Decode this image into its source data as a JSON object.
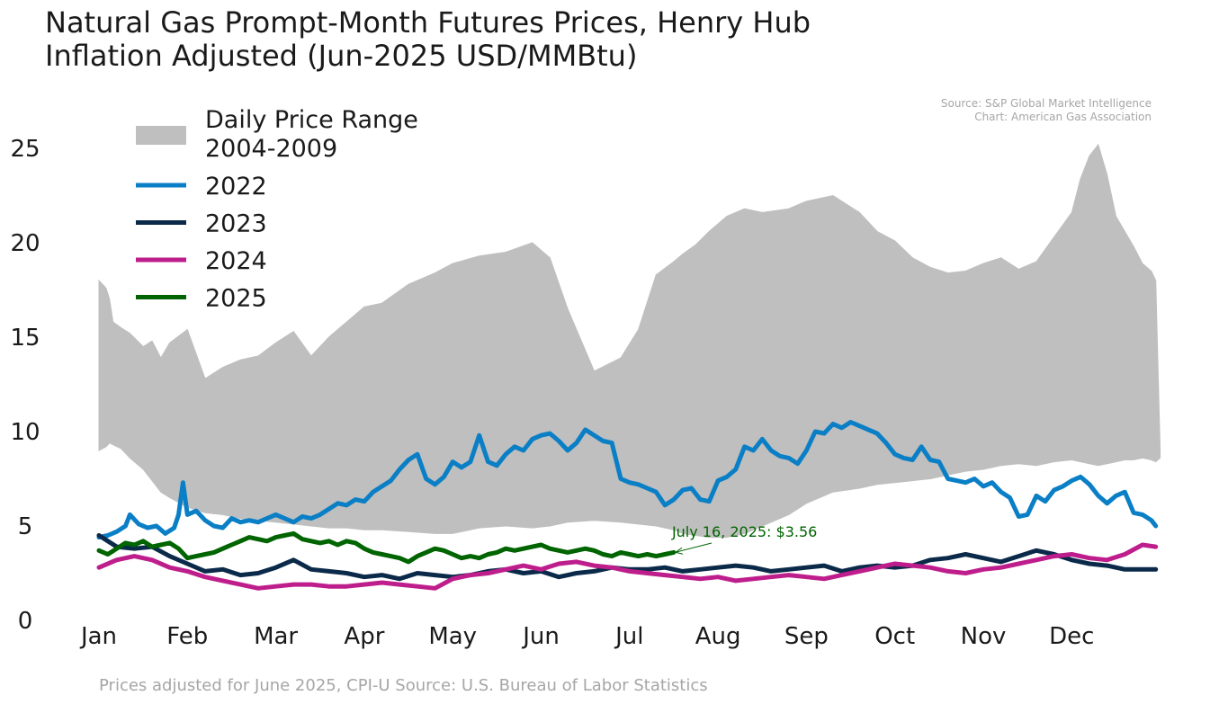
{
  "title": "Natural Gas Prompt-Month Futures Prices, Henry Hub",
  "subtitle": "Inflation Adjusted (Jun-2025 USD/MMBtu)",
  "source_lines": [
    "Source: S&P Global Market Intelligence",
    "Chart: American Gas Association"
  ],
  "footnote": "Prices adjusted for June 2025, CPI-U Source: U.S. Bureau of Labor Statistics",
  "annotation": {
    "text": "July 16, 2025: $3.56",
    "x": 6.5,
    "y": 3.56,
    "color": "#006400"
  },
  "chart_data": {
    "type": "line",
    "xlabel": "",
    "ylabel": "",
    "x_ticks": [
      "Jan",
      "Feb",
      "Mar",
      "Apr",
      "May",
      "Jun",
      "Jul",
      "Aug",
      "Sep",
      "Oct",
      "Nov",
      "Dec"
    ],
    "y_ticks": [
      0,
      5,
      10,
      15,
      20,
      25
    ],
    "xlim": [
      0,
      12
    ],
    "ylim": [
      0,
      27
    ],
    "grid": false,
    "legend": {
      "position": "top-left",
      "band_label_lines": [
        "Daily Price Range",
        "2004-2009"
      ]
    },
    "band": {
      "name": "Daily Price Range 2004-2009",
      "color": "#bfbfbf",
      "x": [
        0,
        0.08,
        0.12,
        0.16,
        0.25,
        0.35,
        0.5,
        0.6,
        0.7,
        0.8,
        1.0,
        1.2,
        1.4,
        1.6,
        1.8,
        2.0,
        2.2,
        2.4,
        2.6,
        2.8,
        3.0,
        3.2,
        3.5,
        3.8,
        4.0,
        4.3,
        4.6,
        4.9,
        5.1,
        5.3,
        5.6,
        5.9,
        6.1,
        6.3,
        6.5,
        6.6,
        6.75,
        6.9,
        7.1,
        7.3,
        7.5,
        7.8,
        8.0,
        8.3,
        8.6,
        8.8,
        9.0,
        9.2,
        9.4,
        9.6,
        9.8,
        10.0,
        10.2,
        10.4,
        10.6,
        10.8,
        11.0,
        11.1,
        11.2,
        11.3,
        11.4,
        11.5,
        11.6,
        11.7,
        11.8,
        11.9,
        11.95,
        12.0
      ],
      "upper": [
        18.0,
        17.6,
        17.0,
        15.8,
        15.5,
        15.2,
        14.5,
        14.8,
        13.9,
        14.7,
        15.4,
        12.8,
        13.4,
        13.8,
        14.0,
        14.7,
        15.3,
        14.0,
        15.0,
        15.8,
        16.6,
        16.8,
        17.8,
        18.4,
        18.9,
        19.3,
        19.5,
        20.0,
        19.2,
        16.5,
        13.2,
        13.9,
        15.4,
        18.3,
        19.0,
        19.4,
        19.9,
        20.6,
        21.4,
        21.8,
        21.6,
        21.8,
        22.2,
        22.5,
        21.6,
        20.6,
        20.1,
        19.2,
        18.7,
        18.4,
        18.5,
        18.9,
        19.2,
        18.6,
        19.0,
        20.3,
        21.6,
        23.4,
        24.6,
        25.2,
        23.6,
        21.4,
        20.6,
        19.8,
        18.9,
        18.5,
        18.0,
        9.0
      ],
      "lower": [
        9.0,
        9.2,
        9.4,
        9.3,
        9.1,
        8.6,
        8.0,
        7.4,
        6.8,
        6.5,
        6.0,
        5.7,
        5.6,
        5.4,
        5.3,
        5.2,
        5.1,
        5.0,
        4.9,
        4.9,
        4.8,
        4.8,
        4.7,
        4.6,
        4.6,
        4.9,
        5.0,
        4.9,
        5.0,
        5.2,
        5.3,
        5.2,
        5.1,
        5.0,
        4.8,
        4.6,
        4.5,
        4.4,
        4.4,
        4.6,
        5.0,
        5.6,
        6.2,
        6.8,
        7.0,
        7.2,
        7.3,
        7.4,
        7.5,
        7.7,
        7.9,
        8.0,
        8.2,
        8.3,
        8.2,
        8.4,
        8.5,
        8.4,
        8.3,
        8.2,
        8.3,
        8.4,
        8.5,
        8.5,
        8.6,
        8.5,
        8.4,
        8.6
      ]
    },
    "series": [
      {
        "name": "2022",
        "color": "#0a7fc6",
        "x": [
          0,
          0.1,
          0.2,
          0.3,
          0.35,
          0.45,
          0.55,
          0.65,
          0.75,
          0.85,
          0.9,
          0.95,
          1.0,
          1.1,
          1.2,
          1.3,
          1.4,
          1.5,
          1.6,
          1.7,
          1.8,
          1.9,
          2.0,
          2.1,
          2.2,
          2.3,
          2.4,
          2.5,
          2.6,
          2.7,
          2.8,
          2.9,
          3.0,
          3.1,
          3.2,
          3.3,
          3.4,
          3.5,
          3.6,
          3.7,
          3.8,
          3.9,
          4.0,
          4.1,
          4.2,
          4.3,
          4.4,
          4.5,
          4.6,
          4.7,
          4.8,
          4.9,
          5.0,
          5.1,
          5.2,
          5.3,
          5.4,
          5.5,
          5.6,
          5.7,
          5.8,
          5.9,
          6.0,
          6.1,
          6.2,
          6.3,
          6.4,
          6.5,
          6.6,
          6.7,
          6.8,
          6.9,
          7.0,
          7.1,
          7.2,
          7.3,
          7.4,
          7.5,
          7.6,
          7.7,
          7.8,
          7.9,
          8.0,
          8.1,
          8.2,
          8.3,
          8.4,
          8.5,
          8.6,
          8.7,
          8.8,
          8.9,
          9.0,
          9.1,
          9.2,
          9.3,
          9.4,
          9.5,
          9.6,
          9.7,
          9.8,
          9.9,
          10.0,
          10.1,
          10.2,
          10.3,
          10.4,
          10.5,
          10.6,
          10.7,
          10.8,
          10.9,
          11.0,
          11.1,
          11.2,
          11.3,
          11.4,
          11.5,
          11.6,
          11.7,
          11.8,
          11.9,
          11.95
        ],
        "values": [
          4.4,
          4.5,
          4.7,
          5.0,
          5.6,
          5.1,
          4.9,
          5.0,
          4.6,
          4.9,
          5.6,
          7.3,
          5.6,
          5.8,
          5.3,
          5.0,
          4.9,
          5.4,
          5.2,
          5.3,
          5.2,
          5.4,
          5.6,
          5.4,
          5.2,
          5.5,
          5.4,
          5.6,
          5.9,
          6.2,
          6.1,
          6.4,
          6.3,
          6.8,
          7.1,
          7.4,
          8.0,
          8.5,
          8.8,
          7.5,
          7.2,
          7.6,
          8.4,
          8.1,
          8.4,
          9.8,
          8.4,
          8.2,
          8.8,
          9.2,
          9.0,
          9.6,
          9.8,
          9.9,
          9.5,
          9.0,
          9.4,
          10.1,
          9.8,
          9.5,
          9.4,
          7.5,
          7.3,
          7.2,
          7.0,
          6.8,
          6.1,
          6.4,
          6.9,
          7.0,
          6.4,
          6.3,
          7.4,
          7.6,
          8.0,
          9.2,
          9.0,
          9.6,
          9.0,
          8.7,
          8.6,
          8.3,
          9.0,
          10.0,
          9.9,
          10.4,
          10.2,
          10.5,
          10.3,
          10.1,
          9.9,
          9.4,
          8.8,
          8.6,
          8.5,
          9.2,
          8.5,
          8.4,
          7.5,
          7.4,
          7.3,
          7.5,
          7.1,
          7.3,
          6.8,
          6.5,
          5.5,
          5.6,
          6.6,
          6.3,
          6.9,
          7.1,
          7.4,
          7.6,
          7.2,
          6.6,
          6.2,
          6.6,
          6.8,
          5.7,
          5.6,
          5.3,
          5.0
        ]
      },
      {
        "name": "2023",
        "color": "#0b2a4a",
        "x": [
          0,
          0.2,
          0.4,
          0.6,
          0.8,
          1.0,
          1.2,
          1.4,
          1.6,
          1.8,
          2.0,
          2.2,
          2.4,
          2.6,
          2.8,
          3.0,
          3.2,
          3.4,
          3.6,
          3.8,
          4.0,
          4.2,
          4.4,
          4.6,
          4.8,
          5.0,
          5.2,
          5.4,
          5.6,
          5.8,
          6.0,
          6.2,
          6.4,
          6.6,
          6.8,
          7.0,
          7.2,
          7.4,
          7.6,
          7.8,
          8.0,
          8.2,
          8.4,
          8.6,
          8.8,
          9.0,
          9.2,
          9.4,
          9.6,
          9.8,
          10.0,
          10.2,
          10.4,
          10.6,
          10.8,
          11.0,
          11.2,
          11.4,
          11.6,
          11.8,
          11.95
        ],
        "values": [
          4.5,
          3.9,
          3.8,
          3.9,
          3.4,
          3.0,
          2.6,
          2.7,
          2.4,
          2.5,
          2.8,
          3.2,
          2.7,
          2.6,
          2.5,
          2.3,
          2.4,
          2.2,
          2.5,
          2.4,
          2.3,
          2.4,
          2.6,
          2.7,
          2.5,
          2.6,
          2.3,
          2.5,
          2.6,
          2.8,
          2.7,
          2.7,
          2.8,
          2.6,
          2.7,
          2.8,
          2.9,
          2.8,
          2.6,
          2.7,
          2.8,
          2.9,
          2.6,
          2.8,
          2.9,
          2.8,
          2.9,
          3.2,
          3.3,
          3.5,
          3.3,
          3.1,
          3.4,
          3.7,
          3.5,
          3.2,
          3.0,
          2.9,
          2.7,
          2.7,
          2.7
        ]
      },
      {
        "name": "2024",
        "color": "#be1e8c",
        "x": [
          0,
          0.2,
          0.4,
          0.6,
          0.8,
          1.0,
          1.2,
          1.4,
          1.6,
          1.8,
          2.0,
          2.2,
          2.4,
          2.6,
          2.8,
          3.0,
          3.2,
          3.4,
          3.6,
          3.8,
          4.0,
          4.2,
          4.4,
          4.6,
          4.8,
          5.0,
          5.2,
          5.4,
          5.6,
          5.8,
          6.0,
          6.2,
          6.4,
          6.6,
          6.8,
          7.0,
          7.2,
          7.4,
          7.6,
          7.8,
          8.0,
          8.2,
          8.4,
          8.6,
          8.8,
          9.0,
          9.2,
          9.4,
          9.6,
          9.8,
          10.0,
          10.2,
          10.4,
          10.6,
          10.8,
          11.0,
          11.2,
          11.4,
          11.6,
          11.8,
          11.95
        ],
        "values": [
          2.8,
          3.2,
          3.4,
          3.2,
          2.8,
          2.6,
          2.3,
          2.1,
          1.9,
          1.7,
          1.8,
          1.9,
          1.9,
          1.8,
          1.8,
          1.9,
          2.0,
          1.9,
          1.8,
          1.7,
          2.2,
          2.4,
          2.5,
          2.7,
          2.9,
          2.7,
          3.0,
          3.1,
          2.9,
          2.8,
          2.6,
          2.5,
          2.4,
          2.3,
          2.2,
          2.3,
          2.1,
          2.2,
          2.3,
          2.4,
          2.3,
          2.2,
          2.4,
          2.6,
          2.8,
          3.0,
          2.9,
          2.8,
          2.6,
          2.5,
          2.7,
          2.8,
          3.0,
          3.2,
          3.4,
          3.5,
          3.3,
          3.2,
          3.5,
          4.0,
          3.9
        ]
      },
      {
        "name": "2025",
        "color": "#006400",
        "x": [
          0,
          0.1,
          0.2,
          0.3,
          0.4,
          0.5,
          0.6,
          0.7,
          0.8,
          0.9,
          1.0,
          1.1,
          1.2,
          1.3,
          1.4,
          1.5,
          1.6,
          1.7,
          1.8,
          1.9,
          2.0,
          2.1,
          2.2,
          2.3,
          2.4,
          2.5,
          2.6,
          2.7,
          2.8,
          2.9,
          3.0,
          3.1,
          3.2,
          3.3,
          3.4,
          3.5,
          3.6,
          3.7,
          3.8,
          3.9,
          4.0,
          4.1,
          4.2,
          4.3,
          4.4,
          4.5,
          4.6,
          4.7,
          4.8,
          4.9,
          5.0,
          5.1,
          5.2,
          5.3,
          5.4,
          5.5,
          5.6,
          5.7,
          5.8,
          5.9,
          6.0,
          6.1,
          6.2,
          6.3,
          6.4,
          6.5
        ],
        "values": [
          3.7,
          3.5,
          3.8,
          4.1,
          4.0,
          4.2,
          3.9,
          4.0,
          4.1,
          3.8,
          3.3,
          3.4,
          3.5,
          3.6,
          3.8,
          4.0,
          4.2,
          4.4,
          4.3,
          4.2,
          4.4,
          4.5,
          4.6,
          4.3,
          4.2,
          4.1,
          4.2,
          4.0,
          4.2,
          4.1,
          3.8,
          3.6,
          3.5,
          3.4,
          3.3,
          3.1,
          3.4,
          3.6,
          3.8,
          3.7,
          3.5,
          3.3,
          3.4,
          3.3,
          3.5,
          3.6,
          3.8,
          3.7,
          3.8,
          3.9,
          4.0,
          3.8,
          3.7,
          3.6,
          3.7,
          3.8,
          3.7,
          3.5,
          3.4,
          3.6,
          3.5,
          3.4,
          3.5,
          3.4,
          3.5,
          3.6
        ]
      }
    ]
  }
}
